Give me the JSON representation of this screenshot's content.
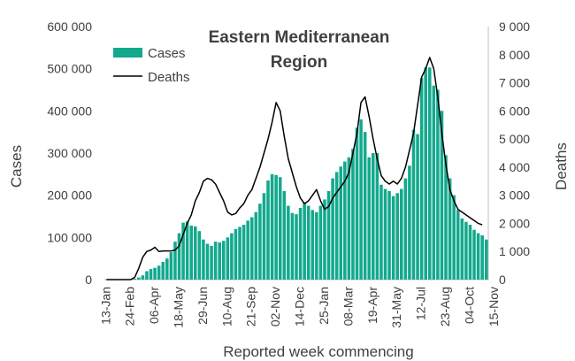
{
  "chart_data": {
    "type": "bar",
    "title_lines": [
      "Eastern Mediterranean",
      "Region"
    ],
    "xlabel": "Reported week commencing",
    "ylabel_left": "Cases",
    "ylabel_right": "Deaths",
    "ylim_left": [
      0,
      600000
    ],
    "ylim_right": [
      0,
      9000
    ],
    "left_ticks": [
      "0",
      "100 000",
      "200 000",
      "300 000",
      "400 000",
      "500 000",
      "600 000"
    ],
    "right_ticks": [
      "0",
      "1 000",
      "2 000",
      "3 000",
      "4 000",
      "5 000",
      "6 000",
      "7 000",
      "8 000",
      "9 000"
    ],
    "x_tick_labels": [
      "13-Jan",
      "24-Feb",
      "06-Apr",
      "18-May",
      "29-Jun",
      "10-Aug",
      "21-Sep",
      "02-Nov",
      "14-Dec",
      "25-Jan",
      "08-Mar",
      "19-Apr",
      "31-May",
      "12-Jul",
      "23-Aug",
      "04-Oct",
      "15-Nov"
    ],
    "x_tick_week_index": [
      0,
      6,
      12,
      18,
      24,
      30,
      36,
      42,
      48,
      54,
      60,
      66,
      72,
      78,
      84,
      90,
      96
    ],
    "legend": {
      "position": "top-left",
      "cases_label": "Cases",
      "deaths_label": "Deaths"
    },
    "colors": {
      "cases": "#13A98D",
      "deaths": "#000000",
      "axis": "#bfbfbf"
    },
    "series": [
      {
        "name": "Cases",
        "axis": "left",
        "kind": "bar",
        "values": [
          0,
          0,
          0,
          0,
          0,
          0,
          0,
          2000,
          5000,
          10000,
          20000,
          25000,
          28000,
          33000,
          42000,
          50000,
          65000,
          90000,
          110000,
          135000,
          138000,
          128000,
          126000,
          115000,
          95000,
          85000,
          80000,
          90000,
          88000,
          92000,
          100000,
          110000,
          120000,
          125000,
          130000,
          140000,
          148000,
          160000,
          180000,
          205000,
          235000,
          250000,
          248000,
          243000,
          210000,
          175000,
          158000,
          155000,
          170000,
          183000,
          175000,
          165000,
          160000,
          175000,
          190000,
          210000,
          240000,
          255000,
          268000,
          280000,
          290000,
          310000,
          360000,
          380000,
          350000,
          290000,
          300000,
          300000,
          225000,
          215000,
          210000,
          198000,
          205000,
          215000,
          240000,
          270000,
          355000,
          345000,
          478000,
          503000,
          503000,
          460000,
          450000,
          400000,
          295000,
          240000,
          200000,
          165000,
          145000,
          137000,
          130000,
          118000,
          110000,
          105000,
          95000
        ]
      },
      {
        "name": "Deaths",
        "axis": "right",
        "kind": "line",
        "values": [
          0,
          0,
          0,
          0,
          0,
          0,
          0,
          80,
          400,
          800,
          1000,
          1050,
          1150,
          1000,
          1020,
          1020,
          1020,
          1050,
          1200,
          1600,
          2000,
          2300,
          2800,
          3100,
          3500,
          3600,
          3550,
          3400,
          3100,
          2800,
          2400,
          2300,
          2350,
          2550,
          2700,
          3000,
          3200,
          3600,
          4000,
          4500,
          5000,
          5600,
          6300,
          6000,
          5100,
          4300,
          3800,
          3300,
          2900,
          2700,
          2800,
          3000,
          3200,
          2800,
          2500,
          2600,
          2900,
          3100,
          3300,
          3500,
          3800,
          4500,
          5200,
          6300,
          6500,
          5800,
          5000,
          4300,
          3700,
          3500,
          3400,
          3500,
          3400,
          3600,
          4000,
          4600,
          5200,
          6200,
          7200,
          7500,
          7900,
          7500,
          6500,
          5200,
          4100,
          3200,
          2800,
          2500,
          2400,
          2300,
          2200,
          2100,
          2000,
          1950
        ]
      }
    ]
  }
}
